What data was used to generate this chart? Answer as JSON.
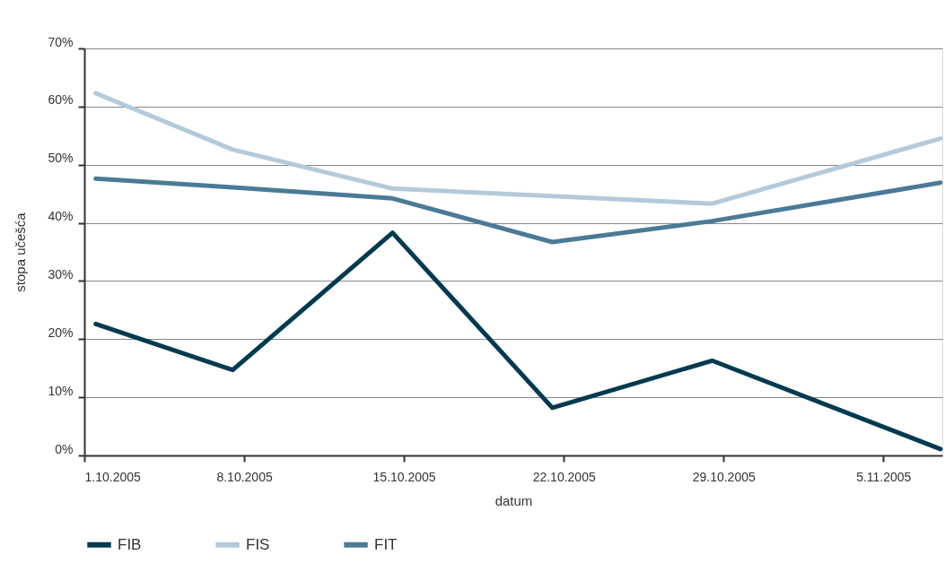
{
  "chart_data": {
    "type": "line",
    "xlabel": "datum",
    "ylabel": "stopa učešća",
    "x": [
      "2005-10-01T12:00",
      "2005-10-07T12:00",
      "2005-10-14T12:00",
      "2005-10-21T12:00",
      "2005-10-28T12:00",
      "2005-11-07T12:00"
    ],
    "series": [
      {
        "name": "FIB",
        "color": "#003a50",
        "values": [
          22.6,
          14.7,
          38.3,
          8.2,
          16.3,
          1.1
        ]
      },
      {
        "name": "FIS",
        "color": "#b3cadb",
        "values": [
          62.3,
          52.6,
          45.9,
          44.6,
          43.3,
          54.5
        ]
      },
      {
        "name": "FIT",
        "color": "#4b7a96",
        "values": [
          47.6,
          46.1,
          44.2,
          36.7,
          40.3,
          46.9
        ]
      }
    ],
    "xlim": [
      "2005-10-01",
      "2005-11-07T14:00"
    ],
    "xticks": [
      {
        "value": "2005-10-01",
        "label": "1.10.2005"
      },
      {
        "value": "2005-10-08",
        "label": "8.10.2005"
      },
      {
        "value": "2005-10-15",
        "label": "15.10.2005"
      },
      {
        "value": "2005-10-22",
        "label": "22.10.2005"
      },
      {
        "value": "2005-10-29",
        "label": "29.10.2005"
      },
      {
        "value": "2005-11-05",
        "label": "5.11.2005"
      }
    ],
    "ylim": [
      0,
      70
    ],
    "yticks": [
      {
        "value": 0,
        "label": "0%"
      },
      {
        "value": 10,
        "label": "10%"
      },
      {
        "value": 20,
        "label": "20%"
      },
      {
        "value": 30,
        "label": "30%"
      },
      {
        "value": 40,
        "label": "40%"
      },
      {
        "value": 50,
        "label": "50%"
      },
      {
        "value": 60,
        "label": "60%"
      },
      {
        "value": 70,
        "label": "70%"
      }
    ],
    "grid": "y",
    "legend": "bottom",
    "marker": "none",
    "line_style": "solid"
  }
}
